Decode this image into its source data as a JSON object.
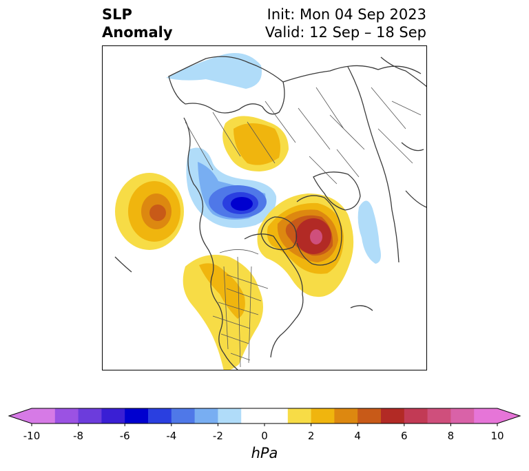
{
  "header": {
    "title_line1": "SLP",
    "title_line2": "Anomaly",
    "init_label": "Init: Mon 04 Sep 2023",
    "valid_label": "Valid: 12 Sep – 18 Sep"
  },
  "map": {
    "projection": "polar-stereographic-north",
    "region": "North America / Arctic",
    "features": [
      "coastlines",
      "country-borders",
      "us-state-borders",
      "canada-province-borders"
    ],
    "anomaly_centers": [
      {
        "name": "gulf-of-alaska-high",
        "sign": "positive",
        "peak_hpa": 6
      },
      {
        "name": "arctic-high",
        "sign": "positive",
        "peak_hpa": 2
      },
      {
        "name": "beaufort-low",
        "sign": "negative",
        "peak_hpa": -7
      },
      {
        "name": "labrador-high",
        "sign": "positive",
        "peak_hpa": 8
      },
      {
        "name": "western-us-high",
        "sign": "positive",
        "peak_hpa": 2
      },
      {
        "name": "atlantic-low",
        "sign": "negative",
        "peak_hpa": -1
      }
    ]
  },
  "colorbar": {
    "unit": "hPa",
    "min": -10,
    "max": 10,
    "extend": "both",
    "tick_labels": [
      "-10",
      "-8",
      "-6",
      "-4",
      "-2",
      "0",
      "2",
      "4",
      "6",
      "8",
      "10"
    ],
    "levels": [
      -10,
      -9,
      -8,
      -7,
      -6,
      -5,
      -4,
      -3,
      -2,
      -1,
      1,
      2,
      3,
      4,
      5,
      6,
      7,
      8,
      9,
      10
    ],
    "colors": [
      "#d67ae6",
      "#9b52e3",
      "#6c3cdc",
      "#3a1fd4",
      "#0000cf",
      "#2a3fe0",
      "#4f78e8",
      "#78aef2",
      "#b0dcf9",
      "#ffffff",
      "#f7dc46",
      "#f0b50e",
      "#dd8810",
      "#c85a18",
      "#b22a25",
      "#c23a55",
      "#cf4f7c",
      "#d962a8",
      "#e675d8"
    ],
    "under_color": "#d67ae6",
    "over_color": "#e675d8"
  }
}
